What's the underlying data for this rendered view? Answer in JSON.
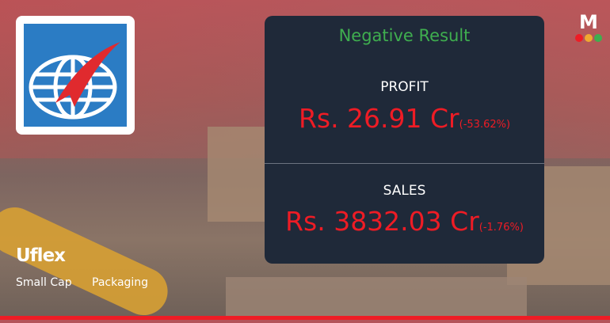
{
  "company": {
    "name": "Uflex",
    "tags": [
      "Small Cap",
      "Packaging"
    ]
  },
  "result": {
    "title": "Negative Result",
    "color": "#3fae4f"
  },
  "profit": {
    "label": "PROFIT",
    "value": "Rs. 26.91 Cr",
    "change": "(-53.62%)"
  },
  "sales": {
    "label": "SALES",
    "value": "Rs. 3832.03 Cr",
    "change": "(-1.76%)"
  },
  "colors": {
    "negative": "#ee1c25",
    "panel": "#1f2939"
  },
  "brand": {
    "logo_letter": "M"
  }
}
